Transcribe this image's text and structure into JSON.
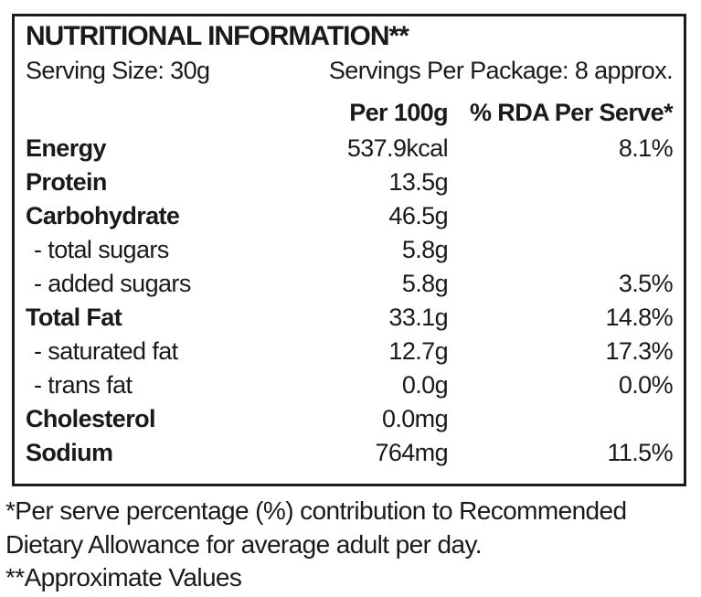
{
  "label": {
    "title": "NUTRITIONAL INFORMATION**",
    "serving_size": "Serving Size: 30g",
    "servings_per_package": "Servings Per Package: 8 approx.",
    "columns": {
      "amount": "Per 100g",
      "rda": "% RDA Per Serve*"
    },
    "rows": [
      {
        "name": "Energy",
        "bold": true,
        "amount": "537.9kcal",
        "rda": "8.1%"
      },
      {
        "name": "Protein",
        "bold": true,
        "amount": "13.5g",
        "rda": ""
      },
      {
        "name": "Carbohydrate",
        "bold": true,
        "amount": "46.5g",
        "rda": ""
      },
      {
        "name": "- total sugars",
        "bold": false,
        "amount": "5.8g",
        "rda": ""
      },
      {
        "name": "- added sugars",
        "bold": false,
        "amount": "5.8g",
        "rda": "3.5%"
      },
      {
        "name": "Total Fat",
        "bold": true,
        "amount": "33.1g",
        "rda": "14.8%"
      },
      {
        "name": "- saturated fat",
        "bold": false,
        "amount": "12.7g",
        "rda": "17.3%"
      },
      {
        "name": "- trans fat",
        "bold": false,
        "amount": "0.0g",
        "rda": "0.0%"
      },
      {
        "name": "Cholesterol",
        "bold": true,
        "amount": "0.0mg",
        "rda": ""
      },
      {
        "name": "Sodium",
        "bold": true,
        "amount": "764mg",
        "rda": "11.5%"
      }
    ],
    "footnote_lines": [
      "*Per serve percentage (%) contribution to Recommended",
      "Dietary Allowance for average adult per day.",
      "**Approximate Values"
    ]
  },
  "colors": {
    "background": "#ffffff",
    "text": "#1a1a1a",
    "border": "#1a1a1a"
  }
}
